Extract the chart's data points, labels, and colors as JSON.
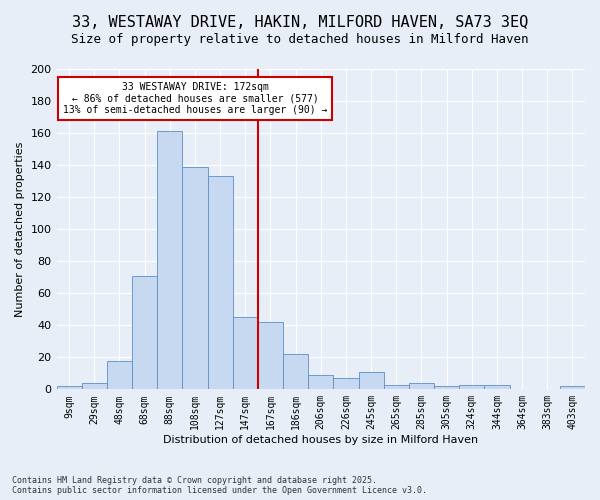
{
  "title": "33, WESTAWAY DRIVE, HAKIN, MILFORD HAVEN, SA73 3EQ",
  "subtitle": "Size of property relative to detached houses in Milford Haven",
  "xlabel": "Distribution of detached houses by size in Milford Haven",
  "ylabel": "Number of detached properties",
  "categories": [
    "9sqm",
    "29sqm",
    "48sqm",
    "68sqm",
    "88sqm",
    "108sqm",
    "127sqm",
    "147sqm",
    "167sqm",
    "186sqm",
    "206sqm",
    "226sqm",
    "245sqm",
    "265sqm",
    "285sqm",
    "305sqm",
    "324sqm",
    "344sqm",
    "364sqm",
    "383sqm",
    "403sqm"
  ],
  "values": [
    2,
    4,
    18,
    71,
    161,
    139,
    133,
    45,
    42,
    22,
    9,
    7,
    11,
    3,
    4,
    2,
    3,
    3,
    0,
    0,
    2
  ],
  "bar_color": "#c6d9f0",
  "bar_edge_color": "#5b8fc9",
  "vline_color": "#cc0000",
  "annotation_text": "33 WESTAWAY DRIVE: 172sqm\n← 86% of detached houses are smaller (577)\n13% of semi-detached houses are larger (90) →",
  "annotation_box_color": "#cc0000",
  "background_color": "#e8eef8",
  "grid_color": "#ffffff",
  "title_fontsize": 11,
  "subtitle_fontsize": 9,
  "axis_label_fontsize": 8,
  "tick_fontsize": 7,
  "footer_text": "Contains HM Land Registry data © Crown copyright and database right 2025.\nContains public sector information licensed under the Open Government Licence v3.0.",
  "ylim": [
    0,
    200
  ],
  "vline_index": 8
}
